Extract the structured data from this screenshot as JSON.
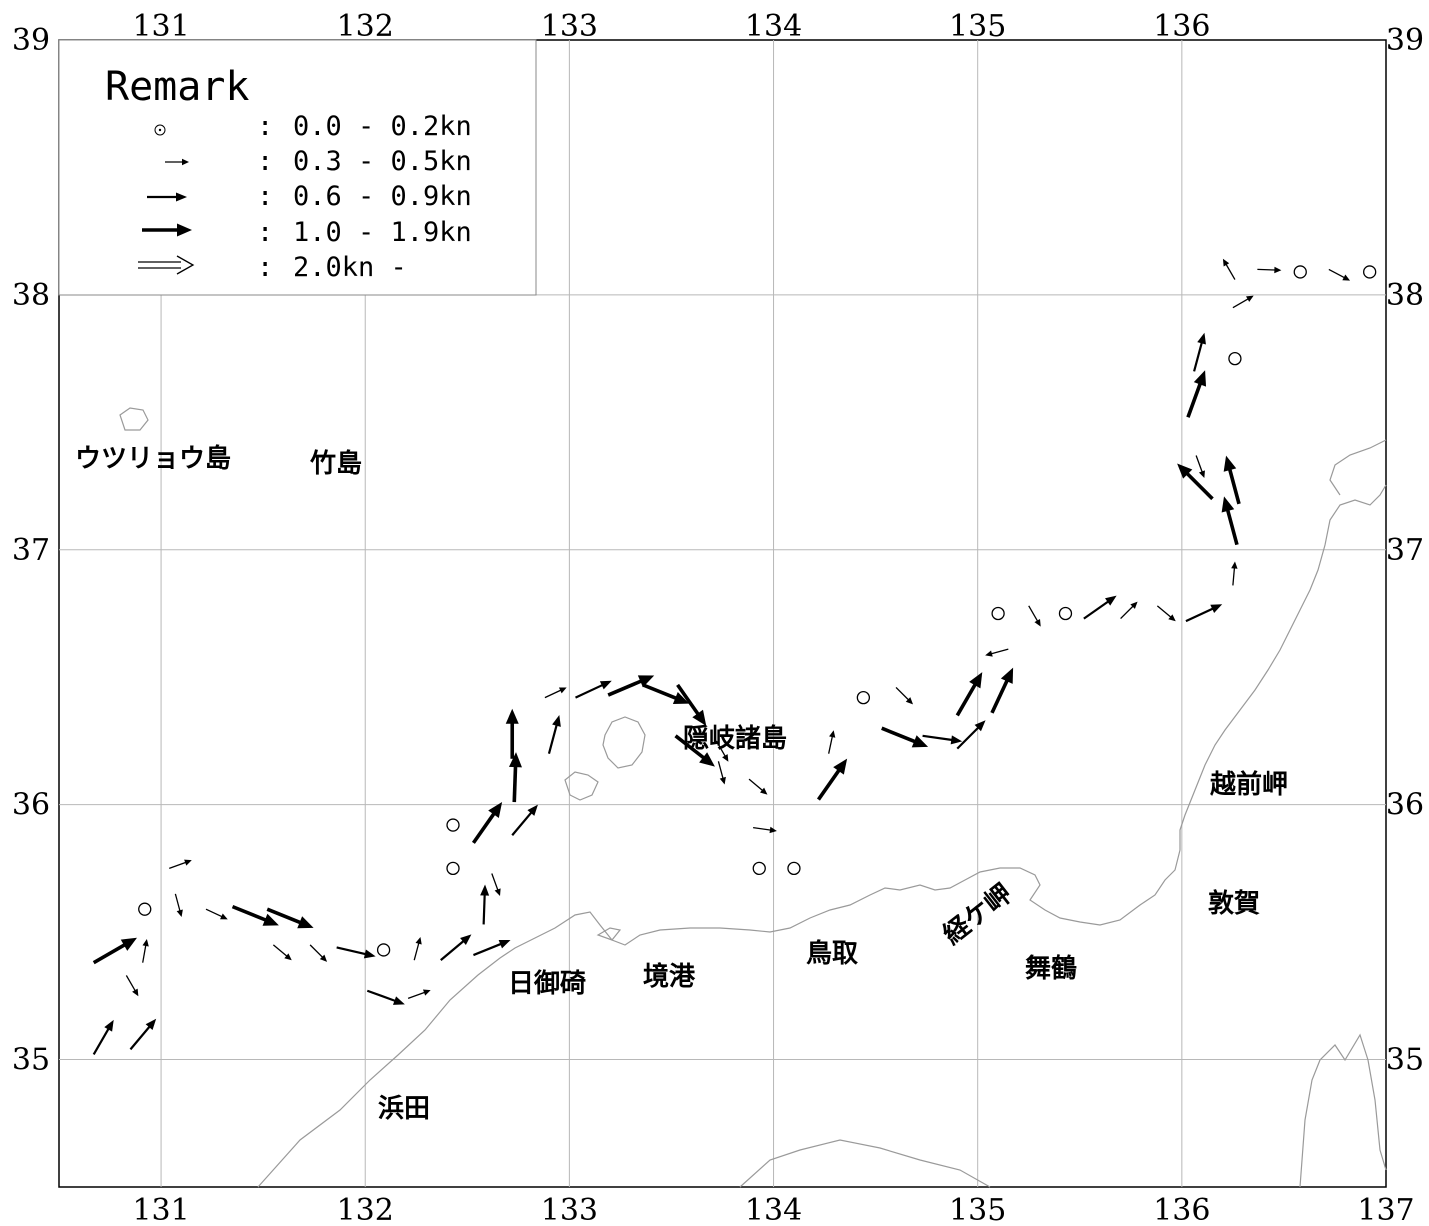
{
  "axes": {
    "lon_ticks": [
      "131",
      "132",
      "133",
      "134",
      "135",
      "136",
      "137"
    ],
    "lat_ticks": [
      "39",
      "38",
      "37",
      "36",
      "35"
    ],
    "lon_range": [
      130.5,
      137
    ],
    "lat_range": [
      34.5,
      39
    ]
  },
  "legend": {
    "title": "Remark",
    "items": [
      {
        "symbol": "circle",
        "sep": ":",
        "label": "0.0 - 0.2kn"
      },
      {
        "symbol": "arrow-thin",
        "sep": ":",
        "label": "0.3 - 0.5kn"
      },
      {
        "symbol": "arrow-medium",
        "sep": ":",
        "label": "0.6 - 0.9kn"
      },
      {
        "symbol": "arrow-thick",
        "sep": ":",
        "label": "1.0 - 1.9kn"
      },
      {
        "symbol": "arrow-double",
        "sep": ":",
        "label": "2.0kn -"
      }
    ]
  },
  "places": [
    {
      "id": "utsuryo",
      "name": "ウツリョウ島"
    },
    {
      "id": "takeshima",
      "name": "竹島"
    },
    {
      "id": "oki",
      "name": "隠岐諸島"
    },
    {
      "id": "echizen",
      "name": "越前岬"
    },
    {
      "id": "tsuruga",
      "name": "敦賀"
    },
    {
      "id": "kyogamisaki",
      "name": "経ケ岬"
    },
    {
      "id": "maizuru",
      "name": "舞鶴"
    },
    {
      "id": "tottori",
      "name": "鳥取"
    },
    {
      "id": "sakaiminato",
      "name": "境港"
    },
    {
      "id": "hinomisaki",
      "name": "日御碕"
    },
    {
      "id": "hamada",
      "name": "浜田"
    }
  ],
  "currents": [
    {
      "lon": 130.67,
      "lat": 35.02,
      "dir": 30,
      "cls": "medium"
    },
    {
      "lon": 130.85,
      "lat": 35.04,
      "dir": 40,
      "cls": "medium"
    },
    {
      "lon": 130.83,
      "lat": 35.33,
      "dir": 150,
      "cls": "thin"
    },
    {
      "lon": 130.91,
      "lat": 35.38,
      "dir": 10,
      "cls": "thin"
    },
    {
      "lon": 130.67,
      "lat": 35.38,
      "dir": 60,
      "cls": "thick"
    },
    {
      "lon": 130.92,
      "lat": 35.59,
      "cls": "circle"
    },
    {
      "lon": 131.04,
      "lat": 35.75,
      "dir": 70,
      "cls": "thin"
    },
    {
      "lon": 131.07,
      "lat": 35.65,
      "dir": 165,
      "cls": "thin"
    },
    {
      "lon": 131.22,
      "lat": 35.59,
      "dir": 115,
      "cls": "thin"
    },
    {
      "lon": 131.35,
      "lat": 35.6,
      "dir": 112,
      "cls": "thick"
    },
    {
      "lon": 131.52,
      "lat": 35.59,
      "dir": 112,
      "cls": "thick"
    },
    {
      "lon": 131.55,
      "lat": 35.45,
      "dir": 130,
      "cls": "thin"
    },
    {
      "lon": 131.73,
      "lat": 35.45,
      "dir": 135,
      "cls": "thin"
    },
    {
      "lon": 131.86,
      "lat": 35.44,
      "dir": 103,
      "cls": "medium"
    },
    {
      "lon": 132.09,
      "lat": 35.43,
      "cls": "circle"
    },
    {
      "lon": 132.01,
      "lat": 35.27,
      "dir": 110,
      "cls": "medium"
    },
    {
      "lon": 132.21,
      "lat": 35.24,
      "dir": 70,
      "cls": "thin"
    },
    {
      "lon": 132.24,
      "lat": 35.39,
      "dir": 15,
      "cls": "thin"
    },
    {
      "lon": 132.37,
      "lat": 35.39,
      "dir": 50,
      "cls": "medium"
    },
    {
      "lon": 132.53,
      "lat": 35.41,
      "dir": 68,
      "cls": "medium"
    },
    {
      "lon": 132.43,
      "lat": 35.75,
      "cls": "circle"
    },
    {
      "lon": 132.43,
      "lat": 35.92,
      "cls": "circle"
    },
    {
      "lon": 132.58,
      "lat": 35.53,
      "dir": 2,
      "cls": "medium"
    },
    {
      "lon": 132.62,
      "lat": 35.73,
      "dir": 160,
      "cls": "thin"
    },
    {
      "lon": 132.53,
      "lat": 35.85,
      "dir": 35,
      "cls": "thick"
    },
    {
      "lon": 132.72,
      "lat": 35.88,
      "dir": 40,
      "cls": "medium"
    },
    {
      "lon": 132.73,
      "lat": 36.01,
      "dir": 2,
      "cls": "thick"
    },
    {
      "lon": 132.72,
      "lat": 36.18,
      "dir": 0,
      "cls": "thick"
    },
    {
      "lon": 132.9,
      "lat": 36.2,
      "dir": 15,
      "cls": "medium"
    },
    {
      "lon": 132.88,
      "lat": 36.42,
      "dir": 65,
      "cls": "thin"
    },
    {
      "lon": 133.03,
      "lat": 36.42,
      "dir": 65,
      "cls": "medium"
    },
    {
      "lon": 133.19,
      "lat": 36.43,
      "dir": 67,
      "cls": "thick"
    },
    {
      "lon": 133.36,
      "lat": 36.47,
      "dir": 112,
      "cls": "thick"
    },
    {
      "lon": 133.53,
      "lat": 36.47,
      "dir": 145,
      "cls": "thick"
    },
    {
      "lon": 133.52,
      "lat": 36.27,
      "dir": 128,
      "cls": "thick"
    },
    {
      "lon": 133.72,
      "lat": 36.25,
      "dir": 150,
      "cls": "thin"
    },
    {
      "lon": 133.73,
      "lat": 36.17,
      "dir": 165,
      "cls": "thin"
    },
    {
      "lon": 133.88,
      "lat": 36.1,
      "dir": 130,
      "cls": "thin"
    },
    {
      "lon": 133.9,
      "lat": 35.91,
      "dir": 98,
      "cls": "thin"
    },
    {
      "lon": 133.93,
      "lat": 35.75,
      "cls": "circle"
    },
    {
      "lon": 134.1,
      "lat": 35.75,
      "cls": "circle"
    },
    {
      "lon": 134.22,
      "lat": 36.02,
      "dir": 35,
      "cls": "thick"
    },
    {
      "lon": 134.27,
      "lat": 36.2,
      "dir": 12,
      "cls": "thin"
    },
    {
      "lon": 134.44,
      "lat": 36.42,
      "cls": "circle"
    },
    {
      "lon": 134.6,
      "lat": 36.46,
      "dir": 135,
      "cls": "thin"
    },
    {
      "lon": 134.53,
      "lat": 36.3,
      "dir": 112,
      "cls": "thick"
    },
    {
      "lon": 134.73,
      "lat": 36.27,
      "dir": 98,
      "cls": "medium"
    },
    {
      "lon": 134.9,
      "lat": 36.22,
      "dir": 45,
      "cls": "medium"
    },
    {
      "lon": 134.9,
      "lat": 36.35,
      "dir": 30,
      "cls": "thick"
    },
    {
      "lon": 135.07,
      "lat": 36.36,
      "dir": 25,
      "cls": "thick"
    },
    {
      "lon": 135.15,
      "lat": 36.61,
      "dir": 255,
      "cls": "thin"
    },
    {
      "lon": 135.1,
      "lat": 36.75,
      "cls": "circle"
    },
    {
      "lon": 135.25,
      "lat": 36.78,
      "dir": 150,
      "cls": "thin"
    },
    {
      "lon": 135.43,
      "lat": 36.75,
      "cls": "circle"
    },
    {
      "lon": 135.52,
      "lat": 36.73,
      "dir": 55,
      "cls": "medium"
    },
    {
      "lon": 135.7,
      "lat": 36.73,
      "dir": 45,
      "cls": "thin"
    },
    {
      "lon": 135.88,
      "lat": 36.78,
      "dir": 130,
      "cls": "thin"
    },
    {
      "lon": 136.02,
      "lat": 36.72,
      "dir": 65,
      "cls": "medium"
    },
    {
      "lon": 136.25,
      "lat": 36.86,
      "dir": 5,
      "cls": "thin"
    },
    {
      "lon": 136.27,
      "lat": 37.02,
      "dir": 345,
      "cls": "thick"
    },
    {
      "lon": 136.28,
      "lat": 37.18,
      "dir": 345,
      "cls": "thick"
    },
    {
      "lon": 136.15,
      "lat": 37.2,
      "dir": 315,
      "cls": "thick"
    },
    {
      "lon": 136.07,
      "lat": 37.37,
      "dir": 160,
      "cls": "thin"
    },
    {
      "lon": 136.03,
      "lat": 37.52,
      "dir": 20,
      "cls": "thick"
    },
    {
      "lon": 136.06,
      "lat": 37.7,
      "dir": 15,
      "cls": "medium"
    },
    {
      "lon": 136.26,
      "lat": 37.75,
      "cls": "circle"
    },
    {
      "lon": 136.25,
      "lat": 37.95,
      "dir": 60,
      "cls": "thin"
    },
    {
      "lon": 136.26,
      "lat": 38.06,
      "dir": 330,
      "cls": "thin"
    },
    {
      "lon": 136.37,
      "lat": 38.1,
      "dir": 92,
      "cls": "thin"
    },
    {
      "lon": 136.58,
      "lat": 38.09,
      "cls": "circle"
    },
    {
      "lon": 136.72,
      "lat": 38.1,
      "dir": 118,
      "cls": "thin"
    },
    {
      "lon": 136.92,
      "lat": 38.09,
      "cls": "circle"
    }
  ]
}
